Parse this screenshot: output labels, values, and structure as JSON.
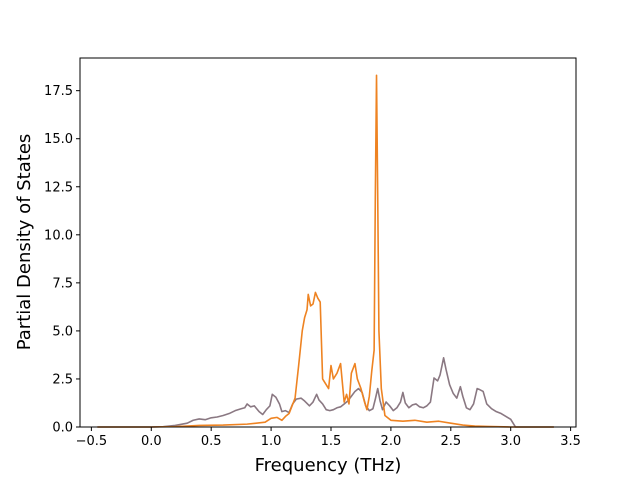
{
  "chart_data": {
    "type": "line",
    "title": "",
    "xlabel": "Frequency (THz)",
    "ylabel": "Partial Density of States",
    "xlim": [
      -0.595,
      3.545
    ],
    "ylim": [
      0.0,
      19.2
    ],
    "x_ticks": [
      -0.5,
      0.0,
      0.5,
      1.0,
      1.5,
      2.0,
      2.5,
      3.0,
      3.5
    ],
    "x_tick_labels": [
      "−0.5",
      "0.0",
      "0.5",
      "1.0",
      "1.5",
      "2.0",
      "2.5",
      "3.0",
      "3.5"
    ],
    "y_ticks": [
      0.0,
      2.5,
      5.0,
      7.5,
      10.0,
      12.5,
      15.0,
      17.5
    ],
    "y_tick_labels": [
      "0.0",
      "2.5",
      "5.0",
      "7.5",
      "10.0",
      "12.5",
      "15.0",
      "17.5"
    ],
    "grid": false,
    "legend": "none",
    "series": [
      {
        "color": "#8a7882",
        "points": [
          [
            -0.45,
            0.0
          ],
          [
            0.0,
            0.0
          ],
          [
            0.1,
            0.02
          ],
          [
            0.2,
            0.08
          ],
          [
            0.3,
            0.2
          ],
          [
            0.35,
            0.35
          ],
          [
            0.4,
            0.42
          ],
          [
            0.45,
            0.38
          ],
          [
            0.5,
            0.48
          ],
          [
            0.55,
            0.52
          ],
          [
            0.6,
            0.6
          ],
          [
            0.65,
            0.7
          ],
          [
            0.7,
            0.85
          ],
          [
            0.75,
            0.95
          ],
          [
            0.78,
            1.0
          ],
          [
            0.8,
            1.2
          ],
          [
            0.83,
            1.05
          ],
          [
            0.86,
            1.1
          ],
          [
            0.9,
            0.8
          ],
          [
            0.93,
            0.65
          ],
          [
            0.96,
            0.9
          ],
          [
            0.99,
            1.1
          ],
          [
            1.01,
            1.7
          ],
          [
            1.04,
            1.55
          ],
          [
            1.07,
            1.2
          ],
          [
            1.09,
            0.8
          ],
          [
            1.12,
            0.85
          ],
          [
            1.15,
            0.75
          ],
          [
            1.18,
            1.2
          ],
          [
            1.21,
            1.45
          ],
          [
            1.25,
            1.5
          ],
          [
            1.28,
            1.35
          ],
          [
            1.32,
            1.1
          ],
          [
            1.35,
            1.3
          ],
          [
            1.38,
            1.7
          ],
          [
            1.4,
            1.4
          ],
          [
            1.43,
            1.2
          ],
          [
            1.46,
            0.9
          ],
          [
            1.49,
            0.85
          ],
          [
            1.52,
            0.9
          ],
          [
            1.55,
            1.0
          ],
          [
            1.58,
            1.05
          ],
          [
            1.61,
            1.2
          ],
          [
            1.64,
            1.35
          ],
          [
            1.67,
            1.6
          ],
          [
            1.7,
            1.85
          ],
          [
            1.73,
            2.0
          ],
          [
            1.76,
            1.8
          ],
          [
            1.79,
            1.1
          ],
          [
            1.82,
            0.85
          ],
          [
            1.85,
            0.95
          ],
          [
            1.87,
            1.45
          ],
          [
            1.89,
            2.0
          ],
          [
            1.91,
            1.35
          ],
          [
            1.93,
            0.9
          ],
          [
            1.96,
            1.3
          ],
          [
            1.99,
            1.1
          ],
          [
            2.02,
            0.85
          ],
          [
            2.05,
            1.0
          ],
          [
            2.08,
            1.3
          ],
          [
            2.1,
            1.8
          ],
          [
            2.12,
            1.25
          ],
          [
            2.15,
            1.0
          ],
          [
            2.18,
            1.15
          ],
          [
            2.21,
            1.2
          ],
          [
            2.24,
            1.05
          ],
          [
            2.27,
            1.0
          ],
          [
            2.3,
            1.1
          ],
          [
            2.33,
            1.3
          ],
          [
            2.36,
            2.55
          ],
          [
            2.39,
            2.4
          ],
          [
            2.41,
            2.7
          ],
          [
            2.44,
            3.6
          ],
          [
            2.46,
            3.0
          ],
          [
            2.49,
            2.2
          ],
          [
            2.52,
            1.75
          ],
          [
            2.55,
            1.5
          ],
          [
            2.58,
            2.1
          ],
          [
            2.6,
            1.6
          ],
          [
            2.63,
            1.0
          ],
          [
            2.66,
            0.9
          ],
          [
            2.69,
            1.2
          ],
          [
            2.72,
            2.0
          ],
          [
            2.74,
            1.95
          ],
          [
            2.77,
            1.85
          ],
          [
            2.8,
            1.2
          ],
          [
            2.84,
            0.95
          ],
          [
            2.88,
            0.8
          ],
          [
            2.92,
            0.7
          ],
          [
            2.96,
            0.55
          ],
          [
            3.0,
            0.4
          ],
          [
            3.02,
            0.2
          ],
          [
            3.04,
            0.0
          ],
          [
            3.36,
            0.0
          ]
        ]
      },
      {
        "color": "#ee8322",
        "points": [
          [
            -0.45,
            0.0
          ],
          [
            0.0,
            0.0
          ],
          [
            0.2,
            0.02
          ],
          [
            0.4,
            0.08
          ],
          [
            0.6,
            0.1
          ],
          [
            0.8,
            0.15
          ],
          [
            0.95,
            0.25
          ],
          [
            1.0,
            0.45
          ],
          [
            1.05,
            0.5
          ],
          [
            1.09,
            0.35
          ],
          [
            1.12,
            0.55
          ],
          [
            1.15,
            0.7
          ],
          [
            1.2,
            1.5
          ],
          [
            1.23,
            3.2
          ],
          [
            1.26,
            5.0
          ],
          [
            1.28,
            5.7
          ],
          [
            1.3,
            6.1
          ],
          [
            1.31,
            6.9
          ],
          [
            1.33,
            6.3
          ],
          [
            1.35,
            6.4
          ],
          [
            1.37,
            7.0
          ],
          [
            1.39,
            6.7
          ],
          [
            1.41,
            6.5
          ],
          [
            1.43,
            2.5
          ],
          [
            1.45,
            2.3
          ],
          [
            1.48,
            2.0
          ],
          [
            1.5,
            3.2
          ],
          [
            1.52,
            2.5
          ],
          [
            1.55,
            2.8
          ],
          [
            1.58,
            3.3
          ],
          [
            1.61,
            1.3
          ],
          [
            1.63,
            1.7
          ],
          [
            1.65,
            1.2
          ],
          [
            1.67,
            2.8
          ],
          [
            1.7,
            3.3
          ],
          [
            1.72,
            2.5
          ],
          [
            1.75,
            2.0
          ],
          [
            1.78,
            1.3
          ],
          [
            1.8,
            0.9
          ],
          [
            1.82,
            1.6
          ],
          [
            1.84,
            2.9
          ],
          [
            1.86,
            4.0
          ],
          [
            1.87,
            12.0
          ],
          [
            1.88,
            18.3
          ],
          [
            1.89,
            12.0
          ],
          [
            1.9,
            5.0
          ],
          [
            1.92,
            2.0
          ],
          [
            1.95,
            0.6
          ],
          [
            2.0,
            0.35
          ],
          [
            2.1,
            0.3
          ],
          [
            2.2,
            0.35
          ],
          [
            2.3,
            0.25
          ],
          [
            2.4,
            0.3
          ],
          [
            2.5,
            0.2
          ],
          [
            2.6,
            0.1
          ],
          [
            2.7,
            0.05
          ],
          [
            2.8,
            0.03
          ],
          [
            3.0,
            0.0
          ],
          [
            3.36,
            0.0
          ]
        ]
      }
    ]
  }
}
